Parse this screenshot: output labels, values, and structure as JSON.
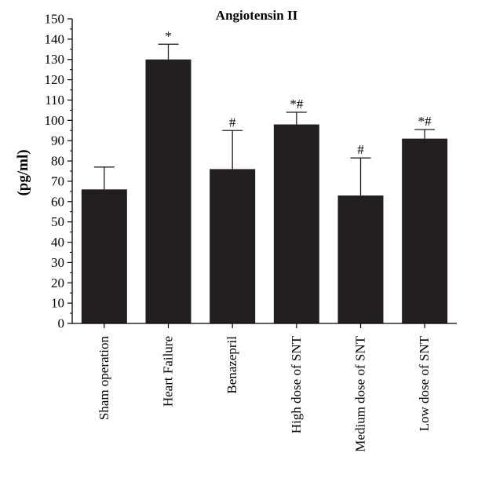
{
  "chart_data": {
    "type": "bar",
    "title": "Angiotensin II",
    "xlabel": "",
    "ylabel": "(pg/ml)",
    "ylim": [
      0,
      150
    ],
    "ytick_step": 10,
    "yticks": [
      "0",
      "10",
      "20",
      "30",
      "40",
      "50",
      "60",
      "70",
      "80",
      "90",
      "100",
      "110",
      "120",
      "130",
      "140",
      "150"
    ],
    "categories": [
      "Sham operation",
      "Heart Failure",
      "Benazepril",
      "High dose of SNT",
      "Medium dose of SNT",
      "Low dose of SNT"
    ],
    "values": [
      66,
      130,
      76,
      98,
      63,
      91
    ],
    "error_upper": [
      77,
      137.5,
      95,
      104,
      81.5,
      95.5
    ],
    "significance": [
      "",
      "*",
      "#",
      "*#",
      "#",
      "*#"
    ],
    "bar_color": "#231f20",
    "grid": false,
    "legend": "none"
  }
}
